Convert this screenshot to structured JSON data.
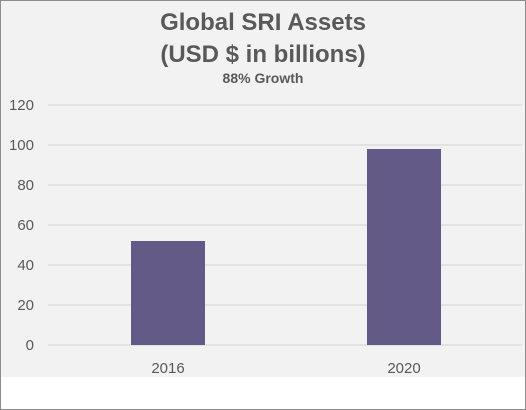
{
  "chart_data": {
    "type": "bar",
    "title_line1": "Global SRI Assets",
    "title_line2": "(USD $ in billions)",
    "subtitle": "88% Growth",
    "categories": [
      "2016",
      "2020"
    ],
    "values": [
      52,
      98
    ],
    "ylim": [
      0,
      120
    ],
    "yticks": [
      0,
      20,
      40,
      60,
      80,
      100,
      120
    ],
    "grid": true,
    "bar_color": "#635a87",
    "grid_color": "#d9d9d9",
    "text_color": "#595959"
  }
}
